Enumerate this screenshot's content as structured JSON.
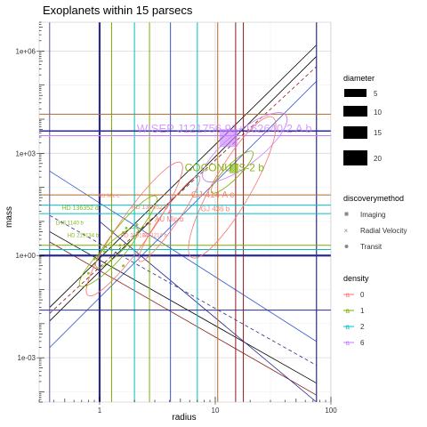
{
  "chart_data": {
    "type": "scatter",
    "title": "Exoplanets within 15 parsecs",
    "xlabel": "radius",
    "ylabel": "mass",
    "x_scale": "log",
    "y_scale": "log",
    "xlim": [
      0.3,
      100
    ],
    "ylim": [
      5e-05,
      7000000
    ],
    "x_ticks": [
      {
        "value": 1,
        "label": "1"
      },
      {
        "value": 10,
        "label": "10"
      },
      {
        "value": 100,
        "label": "100"
      }
    ],
    "y_ticks": [
      {
        "value": 0.001,
        "label": "1e-03"
      },
      {
        "value": 1,
        "label": "1e+00"
      },
      {
        "value": 1000,
        "label": "1e+03"
      },
      {
        "value": 1000000,
        "label": "1e+06"
      }
    ],
    "grid": true,
    "legend_position": "right",
    "legends": {
      "diameter": {
        "title": "diameter",
        "entries": [
          "5",
          "10",
          "15",
          "20"
        ]
      },
      "discoverymethod": {
        "title": "discoverymethod",
        "entries": [
          "Imaging",
          "Radial Velocity",
          "Transit"
        ]
      },
      "density": {
        "title": "density",
        "entries": [
          "0",
          "1",
          "2",
          "6"
        ]
      }
    },
    "colors": {
      "d0": "#F8766D",
      "d1": "#7CAE00",
      "d2": "#00BFC4",
      "d6": "#C77CFF",
      "blue": "#3355cc",
      "navy": "#2b2b8c",
      "darkred": "#8b1a1a",
      "brown": "#b06a2a"
    },
    "labels": [
      {
        "text": "WISEP J121756.91+162640.2 A b",
        "x": 12,
        "y": 4000,
        "density": "6",
        "size": 13
      },
      {
        "text": "COCONUTS-2 b",
        "x": 12,
        "y": 300,
        "density": "1",
        "size": 12
      },
      {
        "text": "GJ 414 A c",
        "x": 9.5,
        "y": 50,
        "density": "0",
        "size": 10
      },
      {
        "text": "GJ 436 b",
        "x": 10,
        "y": 20,
        "density": "0",
        "size": 8
      },
      {
        "text": "AU Mic c",
        "x": 1.2,
        "y": 50,
        "density": "0",
        "size": 6
      },
      {
        "text": "HD 136352 d",
        "x": 0.68,
        "y": 22,
        "density": "1",
        "size": 7
      },
      {
        "text": "HD 136352 b",
        "x": 2.7,
        "y": 23,
        "density": "0",
        "size": 7
      },
      {
        "text": "AU Mic b",
        "x": 4,
        "y": 10,
        "density": "0",
        "size": 8
      },
      {
        "text": "LHS 1140 b",
        "x": 0.55,
        "y": 8,
        "density": "1",
        "size": 6
      },
      {
        "text": "HD 219134 b",
        "x": 0.72,
        "y": 3.5,
        "density": "1",
        "size": 6
      },
      {
        "text": "HD 219134",
        "x": 2,
        "y": 3.5,
        "density": "0",
        "size": 6
      },
      {
        "text": "GJ 1214 b",
        "x": 3,
        "y": 3.5,
        "density": "0",
        "size": 6
      }
    ],
    "points": [
      {
        "x": 13,
        "y": 2800,
        "method": "Imaging",
        "density": "6",
        "diameter": 20
      },
      {
        "x": 14.5,
        "y": 350,
        "method": "Imaging",
        "density": "1",
        "diameter": 10
      },
      {
        "x": 4.1,
        "y": 21,
        "method": "Transit",
        "density": "0",
        "diameter": 3
      },
      {
        "x": 4.0,
        "y": 18,
        "method": "Transit",
        "density": "0",
        "diameter": 3
      },
      {
        "x": 1.7,
        "y": 6.4,
        "method": "Transit",
        "density": "1",
        "diameter": 3
      },
      {
        "x": 1.3,
        "y": 5,
        "method": "Transit",
        "density": "1",
        "diameter": 3
      },
      {
        "x": 1.6,
        "y": 4.7,
        "method": "Transit",
        "density": "1",
        "diameter": 3
      },
      {
        "x": 2.1,
        "y": 8,
        "method": "Transit",
        "density": "1",
        "diameter": 3
      },
      {
        "x": 2.7,
        "y": 8.5,
        "method": "Transit",
        "density": "0",
        "diameter": 3
      },
      {
        "x": 1.5,
        "y": 2,
        "method": "Transit",
        "density": "1",
        "diameter": 3
      },
      {
        "x": 1.1,
        "y": 1.3,
        "method": "Transit",
        "density": "1",
        "diameter": 3
      },
      {
        "x": 0.9,
        "y": 0.8,
        "method": "Transit",
        "density": "1",
        "diameter": 3
      },
      {
        "x": 0.8,
        "y": 0.3,
        "method": "Transit",
        "density": "1",
        "diameter": 3
      },
      {
        "x": 1.6,
        "y": 0.5,
        "method": "Transit",
        "density": "1",
        "diameter": 3
      }
    ],
    "ellipses": [
      {
        "cx": 18,
        "cy": 1500,
        "rx_dec": 0.45,
        "ry_dec": 1.4,
        "rot": -38,
        "density": "6"
      },
      {
        "cx": 14,
        "cy": 100,
        "rx_dec": 0.7,
        "ry_dec": 1.6,
        "rot": -60,
        "density": "0"
      },
      {
        "cx": 14,
        "cy": 280,
        "rx_dec": 0.25,
        "ry_dec": 0.6,
        "rot": -45,
        "density": "1"
      },
      {
        "cx": 4,
        "cy": 12,
        "rx_dec": 0.45,
        "ry_dec": 0.7,
        "rot": -55,
        "density": "0"
      },
      {
        "cx": 1.7,
        "cy": 5,
        "rx_dec": 0.4,
        "ry_dec": 0.8,
        "rot": -50,
        "density": "1"
      },
      {
        "cx": 2,
        "cy": 6,
        "rx_dec": 0.7,
        "ry_dec": 1.3,
        "rot": -55,
        "density": "0"
      },
      {
        "cx": 1.2,
        "cy": 0.9,
        "rx_dec": 0.35,
        "ry_dec": 0.8,
        "rot": -45,
        "density": "1"
      }
    ],
    "vlines": [
      {
        "x": 0.37,
        "color": "navy",
        "w": 0.8
      },
      {
        "x": 1.0,
        "color": "navy",
        "w": 2.2
      },
      {
        "x": 1.27,
        "color": "d1",
        "w": 1
      },
      {
        "x": 2.0,
        "color": "d2",
        "w": 1
      },
      {
        "x": 2.7,
        "color": "d1",
        "w": 1
      },
      {
        "x": 4.1,
        "color": "blue",
        "w": 1
      },
      {
        "x": 7.0,
        "color": "d2",
        "w": 1
      },
      {
        "x": 10.5,
        "color": "brown",
        "w": 1
      },
      {
        "x": 15.0,
        "color": "darkred",
        "w": 1
      },
      {
        "x": 17.5,
        "color": "darkred",
        "w": 1
      },
      {
        "x": 75,
        "color": "navy",
        "w": 1.2
      }
    ],
    "hlines": [
      {
        "y": 14000,
        "color": "brown",
        "w": 1
      },
      {
        "y": 4500,
        "color": "navy",
        "w": 1.5
      },
      {
        "y": 3300,
        "color": "d6",
        "w": 1
      },
      {
        "y": 60,
        "color": "brown",
        "w": 1
      },
      {
        "y": 30,
        "color": "d2",
        "w": 1
      },
      {
        "y": 17,
        "color": "d2",
        "w": 1
      },
      {
        "y": 2,
        "color": "d1",
        "w": 1
      },
      {
        "y": 1.5,
        "color": "d2",
        "w": 1
      },
      {
        "y": 1.0,
        "color": "navy",
        "w": 2.2
      },
      {
        "y": 0.025,
        "color": "navy",
        "w": 1
      }
    ],
    "diag_lines": [
      {
        "x1": 0.37,
        "y1": 0.03,
        "x2": 75,
        "y2": 1500000,
        "color": "#000000",
        "dash": false
      },
      {
        "x1": 0.37,
        "y1": 0.012,
        "x2": 75,
        "y2": 700000,
        "color": "#000000",
        "dash": false
      },
      {
        "x1": 0.37,
        "y1": 0.02,
        "x2": 75,
        "y2": 350000,
        "color": "darkred",
        "dash": true
      },
      {
        "x1": 0.37,
        "y1": 0.002,
        "x2": 75,
        "y2": 130000,
        "color": "blue",
        "dash": false
      },
      {
        "x1": 0.37,
        "y1": 5,
        "x2": 75,
        "y2": 0.00018,
        "color": "#000000",
        "dash": false
      },
      {
        "x1": 0.37,
        "y1": 2.5,
        "x2": 75,
        "y2": 8e-05,
        "color": "darkred",
        "dash": false
      },
      {
        "x1": 0.37,
        "y1": 15,
        "x2": 75,
        "y2": 0.0006,
        "color": "navy",
        "dash": true
      },
      {
        "x1": 0.37,
        "y1": 300,
        "x2": 75,
        "y2": 0.003,
        "color": "blue",
        "dash": false
      },
      {
        "x1": 1.0,
        "y1": 10,
        "x2": 75,
        "y2": 5e-05,
        "color": "navy",
        "dash": false
      }
    ]
  }
}
